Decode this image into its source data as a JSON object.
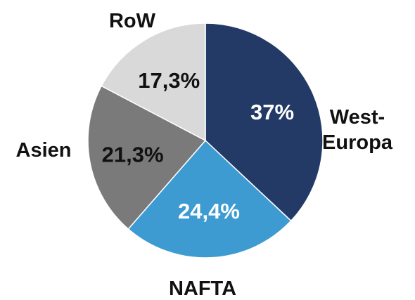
{
  "chart_data": {
    "type": "pie",
    "title": "",
    "slices": [
      {
        "label": "West-Europa",
        "label_lines": [
          "West-",
          "Europa"
        ],
        "value": 37.0,
        "value_label": "37%",
        "color": "#233a66",
        "value_text_color": "#ffffff"
      },
      {
        "label": "NAFTA",
        "label_lines": [
          "NAFTA"
        ],
        "value": 24.4,
        "value_label": "24,4%",
        "color": "#3d9bd2",
        "value_text_color": "#ffffff"
      },
      {
        "label": "Asien",
        "label_lines": [
          "Asien"
        ],
        "value": 21.3,
        "value_label": "21,3%",
        "color": "#7a7a7a",
        "value_text_color": "#111111"
      },
      {
        "label": "RoW",
        "label_lines": [
          "RoW"
        ],
        "value": 17.3,
        "value_label": "17,3%",
        "color": "#d9d9d9",
        "value_text_color": "#111111"
      }
    ],
    "start_angle": "12 o'clock",
    "direction": "clockwise",
    "legend": "none (labels placed beside slices)"
  }
}
